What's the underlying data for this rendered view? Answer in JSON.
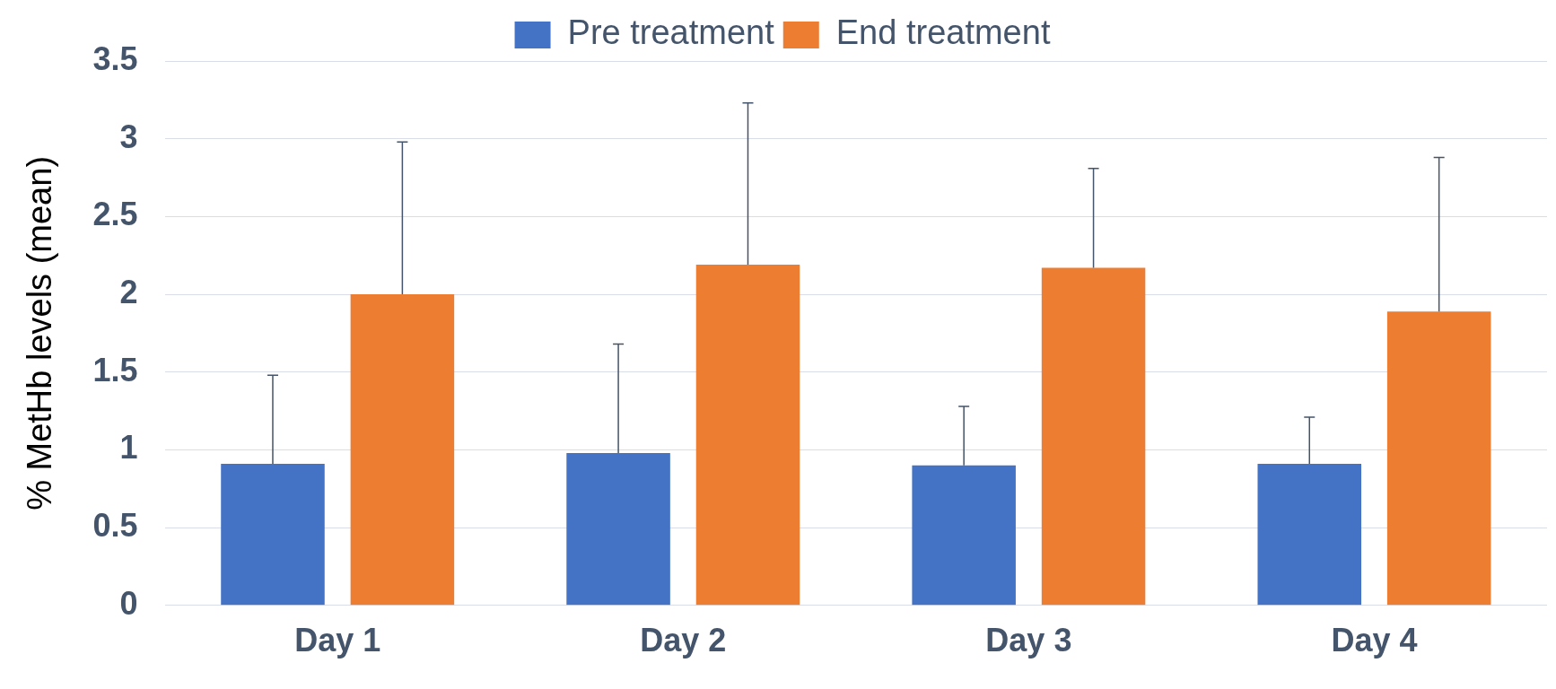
{
  "chart_data": {
    "type": "bar",
    "ylabel": "% MetHb levels (mean)",
    "categories": [
      "Day 1",
      "Day 2",
      "Day 3",
      "Day 4"
    ],
    "series": [
      {
        "name": "Pre treatment",
        "color": "#4472c4",
        "values": [
          0.91,
          0.98,
          0.9,
          0.91
        ],
        "errors": [
          [
            0.91,
            1.48
          ],
          [
            0.98,
            1.68
          ],
          [
            0.9,
            1.28
          ],
          [
            0.91,
            1.21
          ]
        ]
      },
      {
        "name": "End treatment",
        "color": "#ed7d31",
        "values": [
          2.0,
          2.19,
          2.17,
          1.89
        ],
        "errors": [
          [
            2.0,
            2.98
          ],
          [
            2.19,
            3.23
          ],
          [
            2.17,
            2.81
          ],
          [
            1.89,
            2.88
          ]
        ]
      }
    ],
    "ylim": [
      0,
      3.5
    ],
    "yticks": [
      0,
      0.5,
      1,
      1.5,
      2,
      2.5,
      3,
      3.5
    ],
    "grid": "y",
    "legend": "top"
  }
}
